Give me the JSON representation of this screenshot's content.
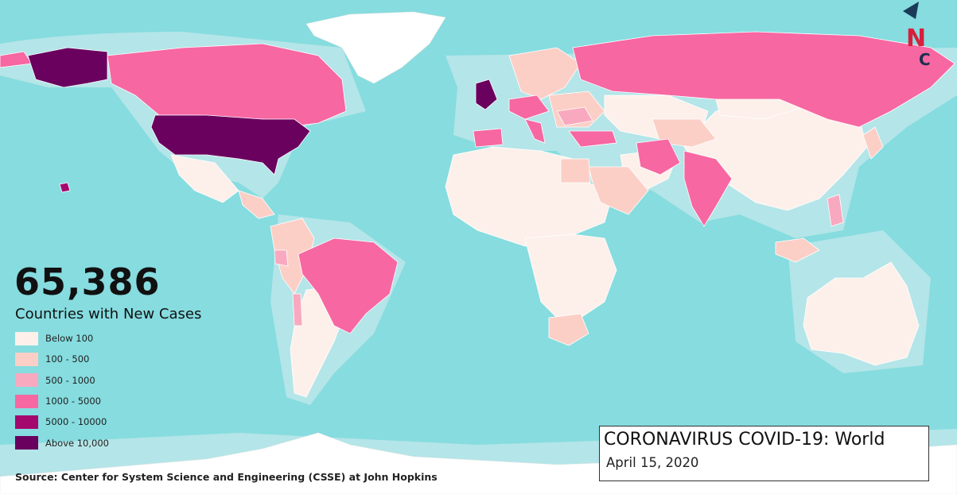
{
  "headline": {
    "count": "65,386",
    "label": "Countries with New Cases"
  },
  "legend": {
    "items": [
      {
        "label": "Below 100",
        "color": "#fdf0ea"
      },
      {
        "label": "100 - 500",
        "color": "#fccfc6"
      },
      {
        "label": "500 - 1000",
        "color": "#f9a9bf"
      },
      {
        "label": "1000 - 5000",
        "color": "#f767a2"
      },
      {
        "label": "5000 - 10000",
        "color": "#a4086f"
      },
      {
        "label": "Above 10,000",
        "color": "#6a015f"
      }
    ]
  },
  "source": "Source: Center for System Science and Engineering (CSSE) at John Hopkins",
  "title_box": {
    "title": "CORONAVIRUS COVID-19: World",
    "date": "April 15, 2020"
  },
  "logo": {
    "letters": [
      "N",
      "C"
    ],
    "colors": {
      "n": "#d81f3c",
      "c": "#1b2f4e",
      "mark": "#1b3a57"
    }
  },
  "map": {
    "ocean_color": "#86dcdf",
    "shelf_color": "#b4e5e8",
    "land_nodata_color": "#ffffff"
  }
}
